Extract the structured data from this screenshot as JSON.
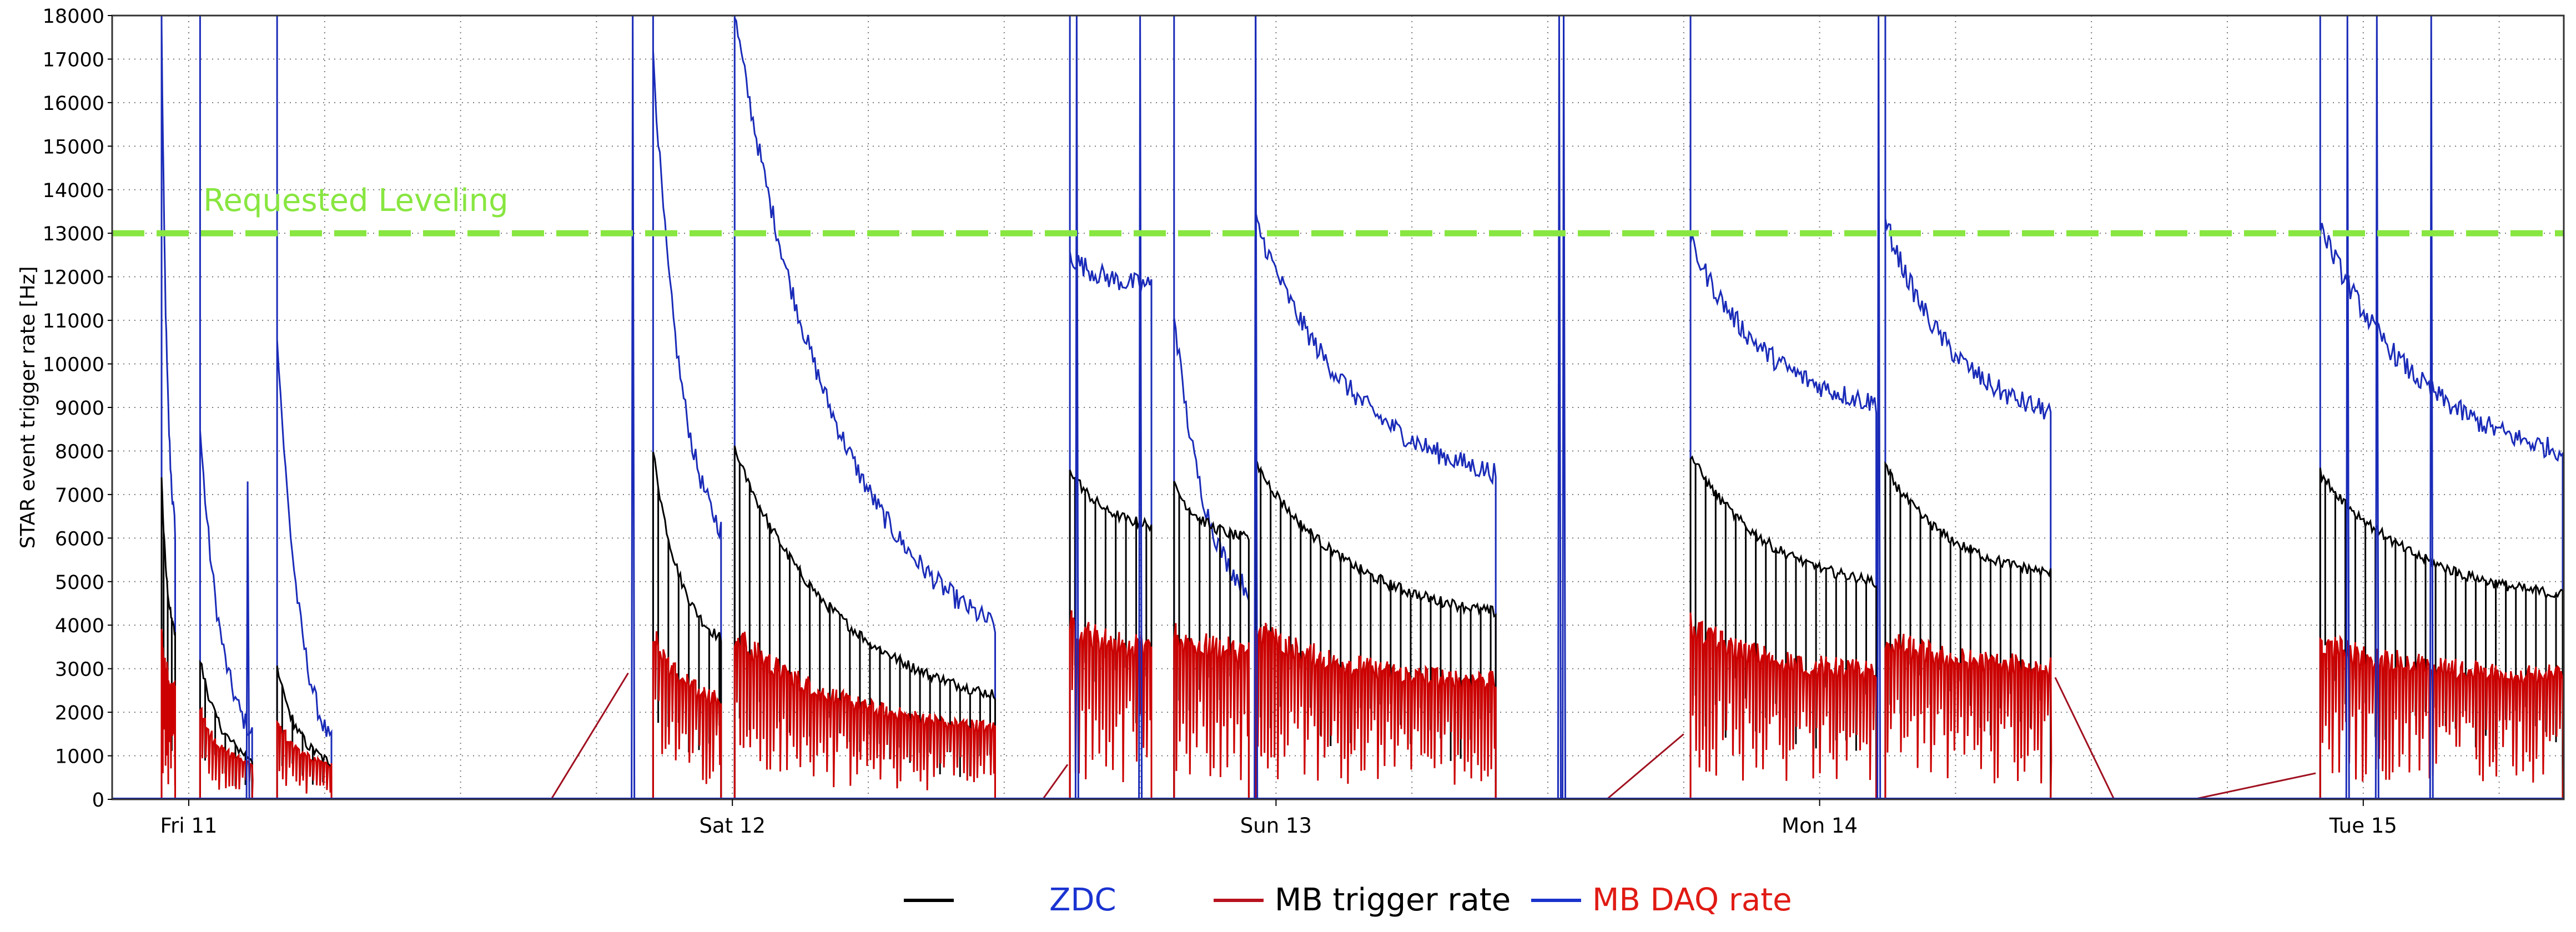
{
  "chart_data": {
    "type": "line",
    "ylabel": "STAR event trigger rate [Hz]",
    "ylim": [
      0,
      18000
    ],
    "yticks": [
      0,
      1000,
      2000,
      3000,
      4000,
      5000,
      6000,
      7000,
      8000,
      9000,
      10000,
      11000,
      12000,
      13000,
      14000,
      15000,
      16000,
      17000,
      18000
    ],
    "x_axis_kind": "time (hours)",
    "xlim_hours": [
      0,
      113
    ],
    "xticks": [
      {
        "hour": 0,
        "label": "Fri 11"
      },
      {
        "hour": 24,
        "label": "Sat 12"
      },
      {
        "hour": 48,
        "label": "Sun 13"
      },
      {
        "hour": 72,
        "label": "Mon 14"
      },
      {
        "hour": 96,
        "label": "Tue 15"
      }
    ],
    "grid": true,
    "annotation": {
      "label": "Requested Leveling",
      "y": 13000,
      "color": "#88e640"
    },
    "legend": {
      "position": "bottom",
      "entries": [
        {
          "label": "",
          "line_color": "#000000"
        },
        {
          "label": "ZDC",
          "line_color": null,
          "text_color": "#1a33d1"
        },
        {
          "label": "MB trigger rate",
          "line_color": "#b8121e",
          "text_color": "#000000"
        },
        {
          "label": "MB DAQ rate",
          "line_color": "#1a33cc",
          "text_color": "#e01b14"
        }
      ]
    },
    "colors": {
      "zdc": "#1a2bb8",
      "trigger": "#000000",
      "daq": "#cc0000",
      "connector": "#a01020"
    },
    "fills": [
      {
        "start": -1.2,
        "end": -0.6,
        "zdc_start": 17800,
        "zdc_end": 6200,
        "trig_start": 7400,
        "trig_end": 3800,
        "daq_start": 4000,
        "daq_end": 2800
      },
      {
        "start": 0.5,
        "end": 2.8,
        "zdc_start": 8500,
        "zdc_end": 1500,
        "trig_start": 3200,
        "trig_end": 950,
        "daq_start": 2200,
        "daq_end": 900
      },
      {
        "start": 3.9,
        "end": 6.3,
        "zdc_start": 10800,
        "zdc_end": 1300,
        "trig_start": 3000,
        "trig_end": 850,
        "daq_start": 2000,
        "daq_end": 850
      },
      {
        "start": 20.5,
        "end": 23.5,
        "zdc_start": 17200,
        "zdc_end": 6200,
        "trig_start": 8000,
        "trig_end": 3700,
        "daq_start": 4200,
        "daq_end": 2500
      },
      {
        "start": 24.1,
        "end": 35.6,
        "zdc_start": 18000,
        "zdc_end": 4000,
        "trig_start": 8000,
        "trig_end": 2400,
        "daq_start": 4100,
        "daq_end": 1800
      },
      {
        "start": 38.9,
        "end": 42.5,
        "zdc_start": 12500,
        "zdc_end": 11800,
        "trig_start": 7600,
        "trig_end": 6300,
        "daq_start": 4400,
        "daq_end": 3800
      },
      {
        "start": 43.5,
        "end": 46.8,
        "zdc_start": 11200,
        "zdc_end": 4800,
        "trig_start": 7200,
        "trig_end": 6000,
        "daq_start": 4100,
        "daq_end": 3700
      },
      {
        "start": 47.1,
        "end": 57.7,
        "zdc_start": 13300,
        "zdc_end": 7500,
        "trig_start": 7700,
        "trig_end": 4300,
        "daq_start": 4200,
        "daq_end": 2950
      },
      {
        "start": 66.3,
        "end": 74.5,
        "zdc_start": 12800,
        "zdc_end": 9100,
        "trig_start": 7900,
        "trig_end": 5000,
        "daq_start": 4300,
        "daq_end": 3200
      },
      {
        "start": 74.9,
        "end": 82.2,
        "zdc_start": 13300,
        "zdc_end": 8900,
        "trig_start": 7600,
        "trig_end": 5200,
        "daq_start": 4000,
        "daq_end": 3300
      },
      {
        "start": 94.1,
        "end": 107.1,
        "zdc_start": 13200,
        "zdc_end": 8000,
        "trig_start": 7500,
        "trig_end": 4700,
        "daq_start": 3900,
        "daq_end": 3100
      }
    ],
    "spikes_zdc": [
      {
        "hour": 2.6,
        "value": 7300
      },
      {
        "hour": 19.6,
        "value": 18000
      },
      {
        "hour": 39.2,
        "value": 18000
      },
      {
        "hour": 42.0,
        "value": 18000
      },
      {
        "hour": 47.1,
        "value": 18000
      },
      {
        "hour": 60.5,
        "value": 18000
      },
      {
        "hour": 60.7,
        "value": 18000
      },
      {
        "hour": 74.6,
        "value": 18000
      },
      {
        "hour": 95.3,
        "value": 18000
      },
      {
        "hour": 96.6,
        "value": 18000
      },
      {
        "hour": 99.0,
        "value": 18000
      }
    ],
    "connectors": [
      {
        "x0": 16.0,
        "y0": 0,
        "x1": 19.4,
        "y1": 2900
      },
      {
        "x0": 37.7,
        "y0": 0,
        "x1": 38.8,
        "y1": 800
      },
      {
        "x0": 62.6,
        "y0": 0,
        "x1": 66.0,
        "y1": 1500
      },
      {
        "x0": 82.4,
        "y0": 2800,
        "x1": 85.0,
        "y1": 0
      },
      {
        "x0": 88.5,
        "y0": 0,
        "x1": 93.9,
        "y1": 600
      }
    ]
  }
}
